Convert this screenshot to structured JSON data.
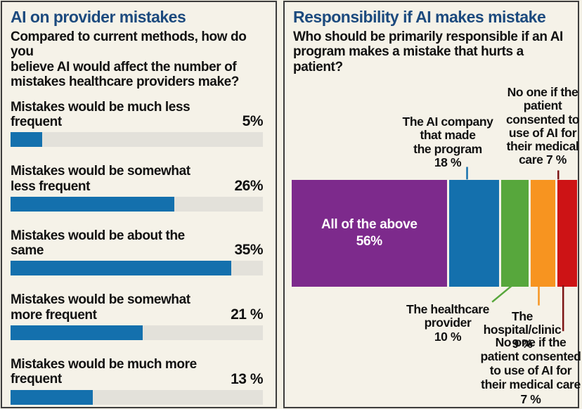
{
  "page": {
    "background_color": "#f3f0e5",
    "panel_background": "#f5f2e8",
    "panel_border_color": "#3c3c3c",
    "title_color": "#1c4a7e"
  },
  "chart_data": [
    {
      "type": "bar",
      "orientation": "horizontal",
      "title": "AI on provider mistakes",
      "subtitle": "Compared to current methods, how do you\nbelieve AI would affect the number of\nmistakes healthcare providers make?",
      "categories": [
        "Mistakes would be much less frequent",
        "Mistakes would be somewhat less frequent",
        "Mistakes would be about the same",
        "Mistakes would be somewhat more frequent",
        "Mistakes would be much more frequent"
      ],
      "values": [
        5,
        26,
        35,
        21,
        13
      ],
      "value_labels": [
        "5%",
        "26%",
        "35%",
        "21 %",
        "13 %"
      ],
      "bar_color": "#1470ad",
      "track_color": "#e3e1da",
      "xlim": [
        0,
        40
      ],
      "grid": false,
      "legend": false
    },
    {
      "type": "stacked-bar",
      "orientation": "horizontal",
      "title": "Responsibility if AI makes mistake",
      "subtitle": "Who should be primarily responsible if an AI\nprogram makes a mistake that hurts a\npatient?",
      "categories": [
        "All of the above",
        "The AI company that made the program",
        "The healthcare provider",
        "The hospital/clinic",
        "No one if the patient consented to use of AI for their medical care"
      ],
      "values": [
        56,
        18,
        10,
        9,
        7
      ],
      "value_labels": [
        "56%",
        "18 %",
        "10 %",
        "9 %",
        "7 %"
      ],
      "colors": [
        "#7d2a8c",
        "#1470ad",
        "#57a73c",
        "#f79420",
        "#cd1315"
      ],
      "total": 100,
      "leader_dark_color": "#7c1414",
      "inside_label": "All of the above\n56%",
      "annotations": {
        "ai_company_top": "The AI company\nthat made\nthe program\n18 %",
        "no_one_top": "No one if the\npatient\nconsented to\nuse of AI for\ntheir medical\ncare 7 %",
        "healthcare_bottom": "The healthcare\nprovider\n10 %",
        "hospital_bottom": "The\nhospital/clinic\n9 %",
        "no_one_bottom": "No one if the\npatient consented\nto use of AI for\ntheir medical care\n7 %"
      }
    }
  ]
}
